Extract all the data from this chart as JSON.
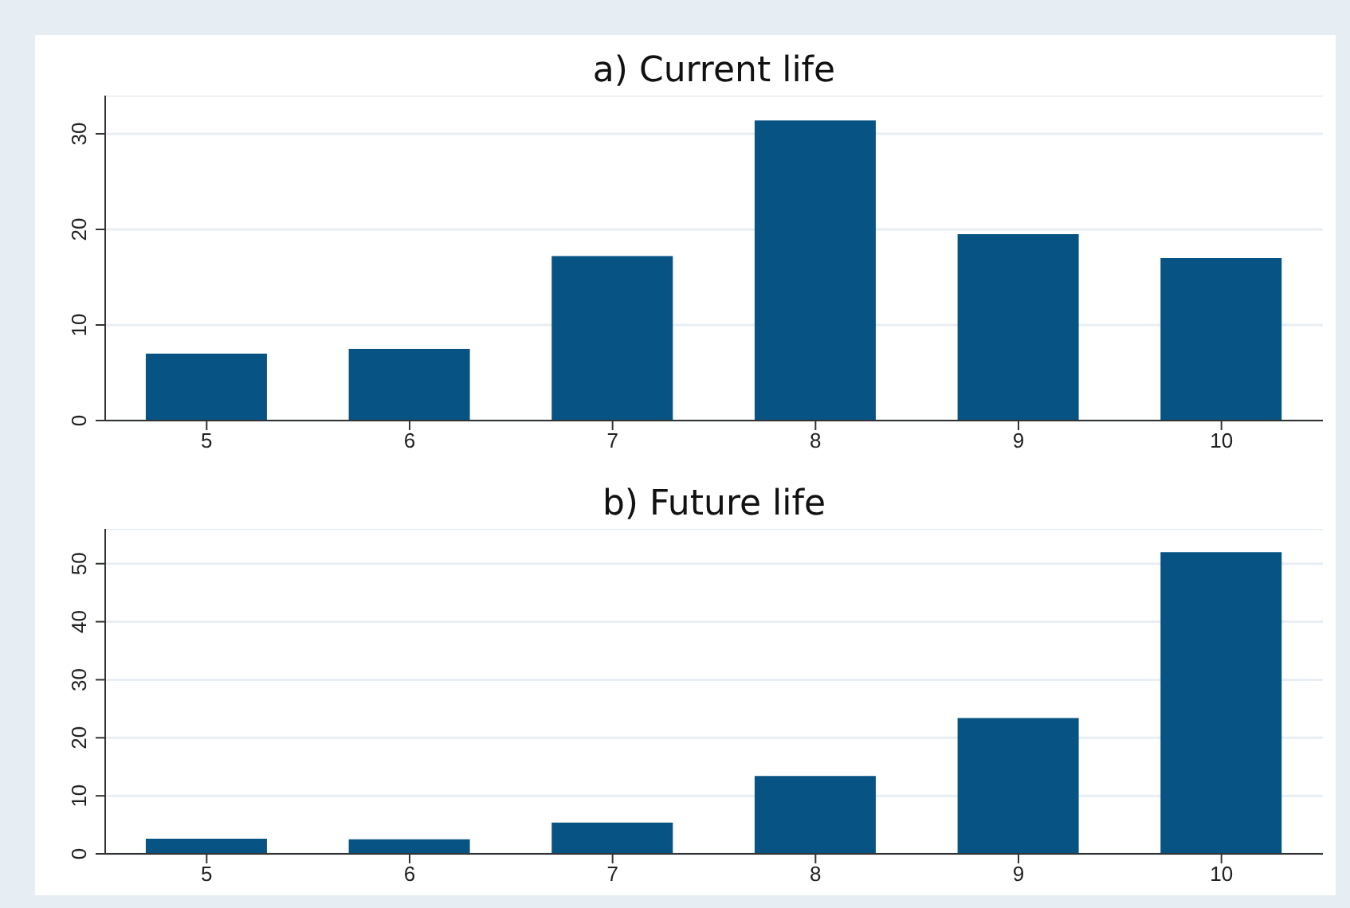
{
  "chart_data": [
    {
      "type": "bar",
      "title": "a) Current life",
      "categories": [
        "5",
        "6",
        "7",
        "8",
        "9",
        "10"
      ],
      "values": [
        7.0,
        7.5,
        17.2,
        31.4,
        19.5,
        17.0
      ],
      "color": "#065384",
      "ylim": [
        0,
        34
      ],
      "yticks": [
        0,
        10,
        20,
        30
      ],
      "grid": "y"
    },
    {
      "type": "bar",
      "title": "b) Future life",
      "categories": [
        "5",
        "6",
        "7",
        "8",
        "9",
        "10"
      ],
      "values": [
        2.6,
        2.5,
        5.4,
        13.4,
        23.4,
        52.0
      ],
      "color": "#065384",
      "ylim": [
        0,
        56
      ],
      "yticks": [
        0,
        10,
        20,
        30,
        40,
        50
      ],
      "grid": "y"
    }
  ]
}
